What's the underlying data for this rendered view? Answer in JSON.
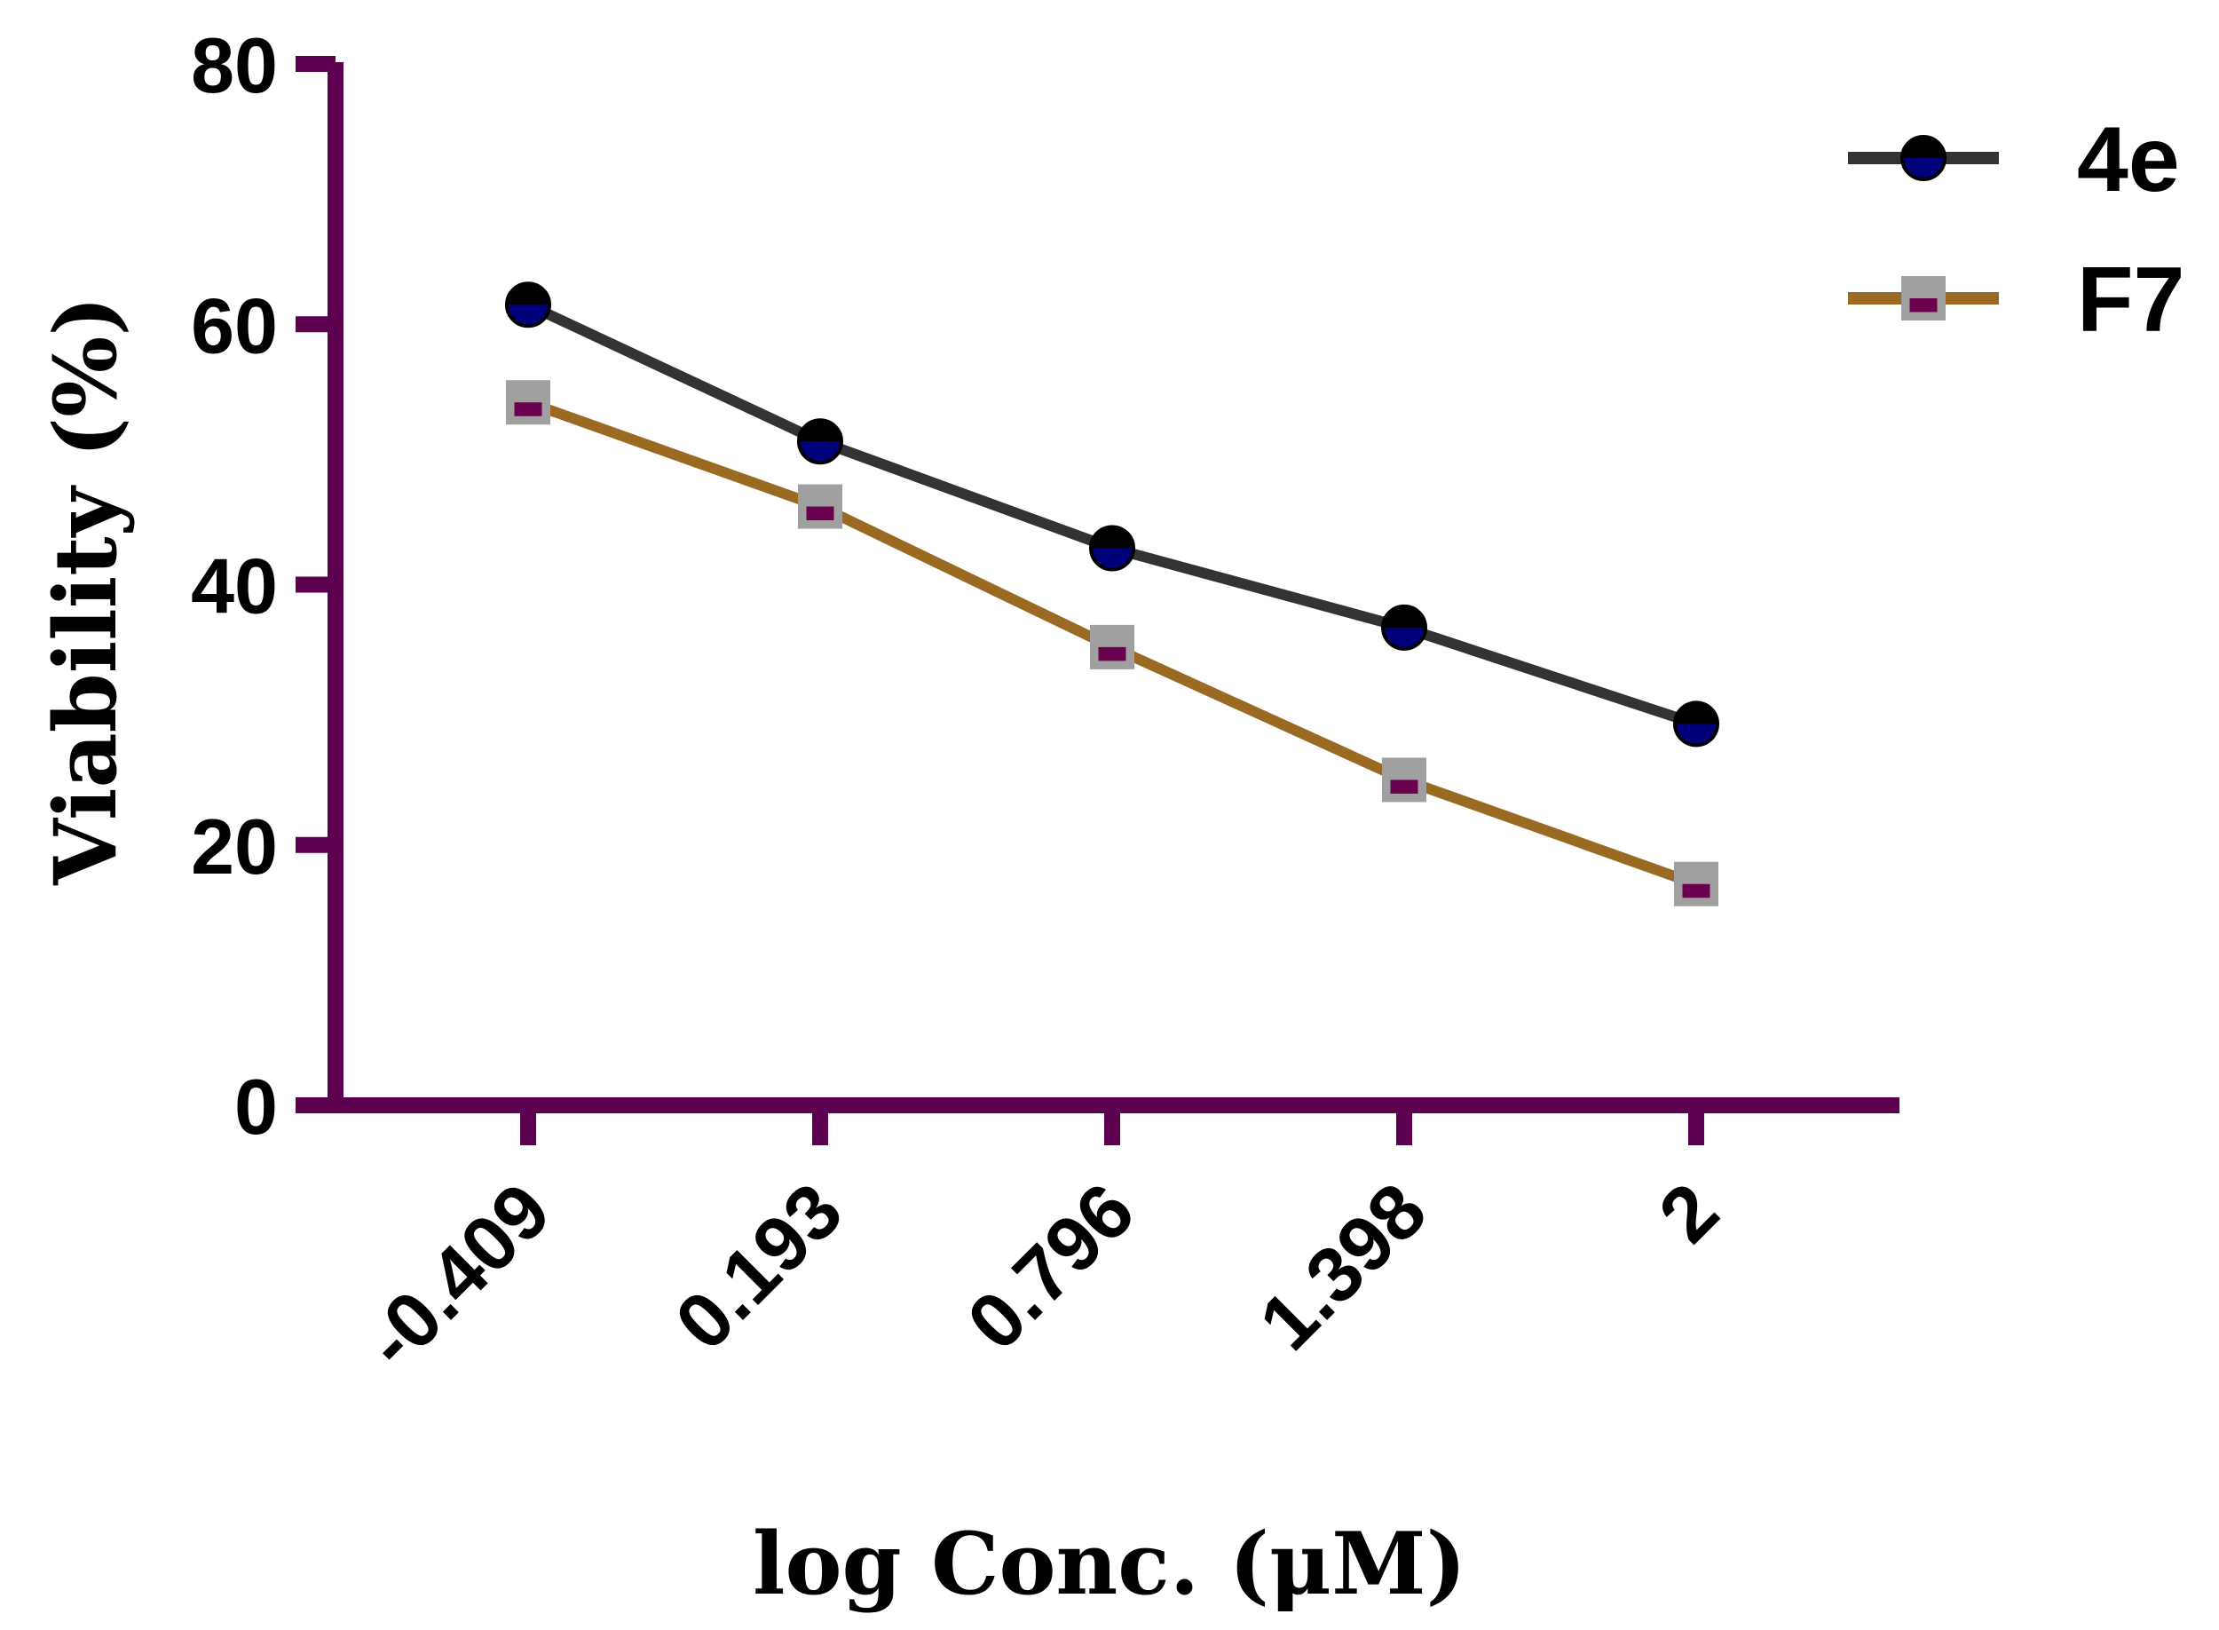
{
  "chart_data": {
    "type": "line",
    "title": "",
    "xlabel": "log Conc. (μM)",
    "ylabel": "Viability (%)",
    "categories": [
      "-0.409",
      "0.193",
      "0.796",
      "1.398",
      "2"
    ],
    "yticks": [
      "0",
      "20",
      "40",
      "60",
      "80"
    ],
    "ylim": [
      0,
      80
    ],
    "grid": false,
    "legend_position": "top-right",
    "axis_color": "#5e0050",
    "series": [
      {
        "name": "4e",
        "values": [
          61.5,
          51.0,
          42.8,
          36.7,
          29.3
        ],
        "line_color": "#333333",
        "marker": "circle",
        "marker_top_color": "#000000",
        "marker_bottom_color": "#00007a"
      },
      {
        "name": "F7",
        "values": [
          54.0,
          46.0,
          35.2,
          25.0,
          17.0
        ],
        "line_color": "#9a6a23",
        "marker": "square",
        "marker_top_color": "#a0a0a0",
        "marker_bottom_color": "#6a004e"
      }
    ]
  }
}
